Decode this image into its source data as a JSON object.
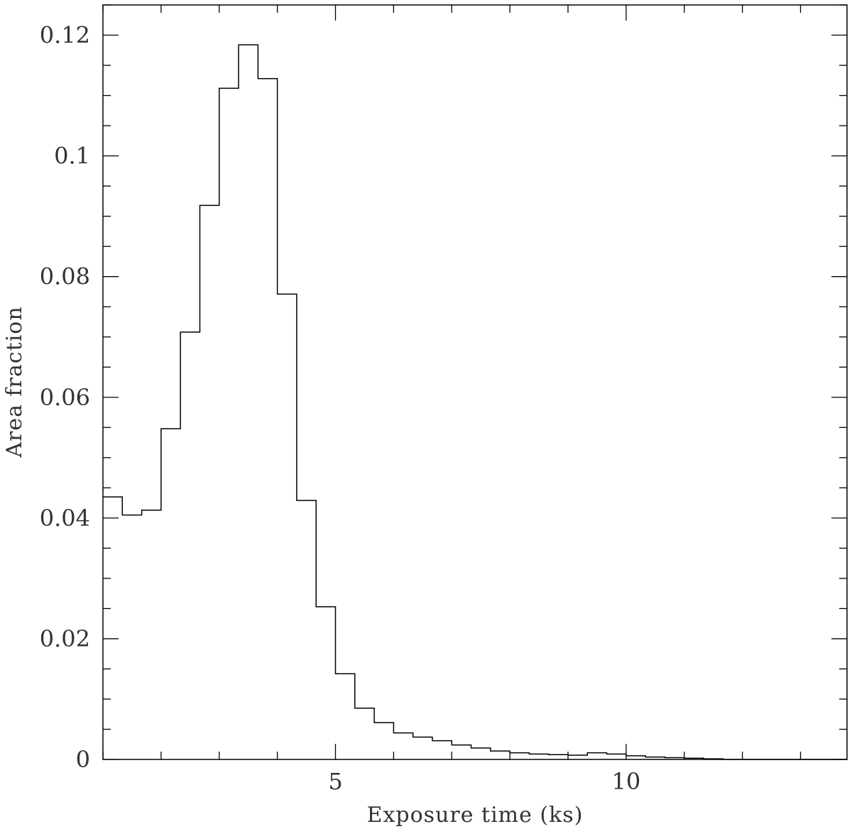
{
  "chart_data": {
    "type": "histogram",
    "xlabel": "Exposure time (ks)",
    "ylabel": "Area fraction",
    "xlim": [
      1.0,
      13.8
    ],
    "ylim": [
      0,
      0.125
    ],
    "xticks": {
      "labeled": [
        5,
        10
      ],
      "labels": [
        "5",
        "10"
      ],
      "minor_step": 1
    },
    "yticks": {
      "labeled": [
        0,
        0.02,
        0.04,
        0.06,
        0.08,
        0.1,
        0.12
      ],
      "labels": [
        "0",
        "0.02",
        "0.04",
        "0.06",
        "0.08",
        "0.1",
        "0.12"
      ],
      "minor_step": 0.005
    },
    "bin_edges": [
      1.0,
      1.333,
      1.667,
      2.0,
      2.333,
      2.667,
      3.0,
      3.333,
      3.667,
      4.0,
      4.333,
      4.667,
      5.0,
      5.333,
      5.667,
      6.0,
      6.333,
      6.667,
      7.0,
      7.333,
      7.667,
      8.0,
      8.333,
      8.667,
      9.0,
      9.333,
      9.667,
      10.0,
      10.333,
      10.667,
      11.0,
      11.333,
      11.667,
      12.0,
      12.333,
      12.667,
      13.0,
      13.333,
      13.8
    ],
    "values": [
      0.0435,
      0.0405,
      0.0413,
      0.0548,
      0.0708,
      0.0918,
      0.1112,
      0.1184,
      0.1128,
      0.0771,
      0.0429,
      0.0253,
      0.0142,
      0.0085,
      0.0061,
      0.0044,
      0.0037,
      0.0031,
      0.0024,
      0.0019,
      0.0014,
      0.0011,
      0.0009,
      0.0008,
      0.0007,
      0.0011,
      0.0009,
      0.0006,
      0.0004,
      0.0003,
      0.0002,
      0.0001,
      0.0,
      0.0,
      0.0,
      0.0,
      0.0,
      0.0
    ],
    "grid": false,
    "legend": "none"
  }
}
